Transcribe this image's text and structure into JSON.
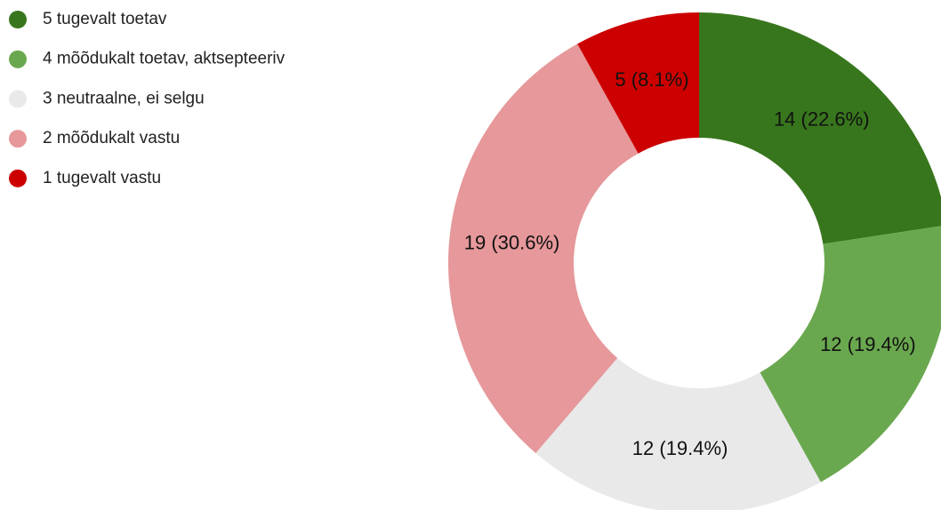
{
  "chart_data": {
    "type": "donut",
    "categories": [
      "5 tugevalt toetav",
      "4 mõõdukalt toetav, aktsepteeriv",
      "3 neutraalne, ei selgu",
      "2 mõõdukalt vastu",
      "1 tugevalt vastu"
    ],
    "values": [
      14,
      12,
      12,
      19,
      5
    ],
    "value_labels": [
      "14 (22.6%)",
      "12 (19.4%)",
      "12 (19.4%)",
      "19 (30.6%)",
      "5 (8.1%)"
    ],
    "colors": [
      "#38761d",
      "#6aa84f",
      "#e9e9e9",
      "#e6989a",
      "#cc0000"
    ],
    "legend": "top-left"
  }
}
